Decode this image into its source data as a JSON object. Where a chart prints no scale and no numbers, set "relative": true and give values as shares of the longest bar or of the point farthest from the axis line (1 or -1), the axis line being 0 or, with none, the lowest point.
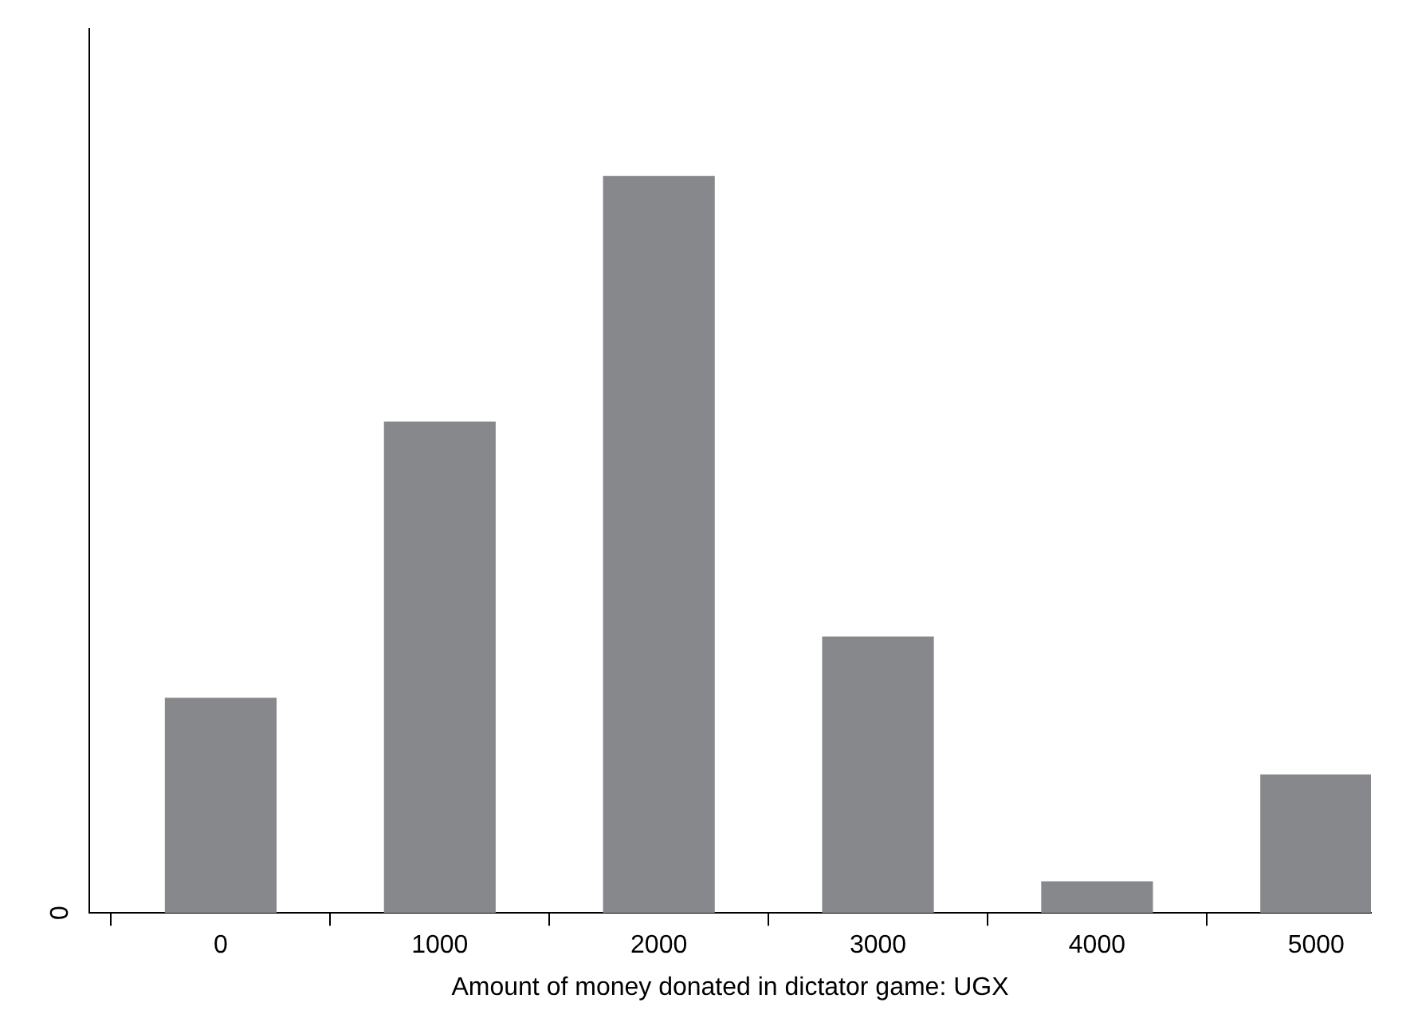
{
  "chart_data": {
    "type": "bar",
    "relative": true,
    "xlabel": "Amount of money donated in dictator game: UGX",
    "x": [
      0,
      1000,
      2000,
      3000,
      4000,
      5000
    ],
    "values": [
      0.292,
      0.667,
      1,
      0.375,
      0.043,
      0.188
    ],
    "color": "#87888c",
    "xlim": [
      -600,
      5250
    ],
    "xticks": [
      0,
      1000,
      2000,
      3000,
      4000,
      5000
    ],
    "annotations": [
      "0"
    ],
    "grid": false,
    "legend": false
  }
}
